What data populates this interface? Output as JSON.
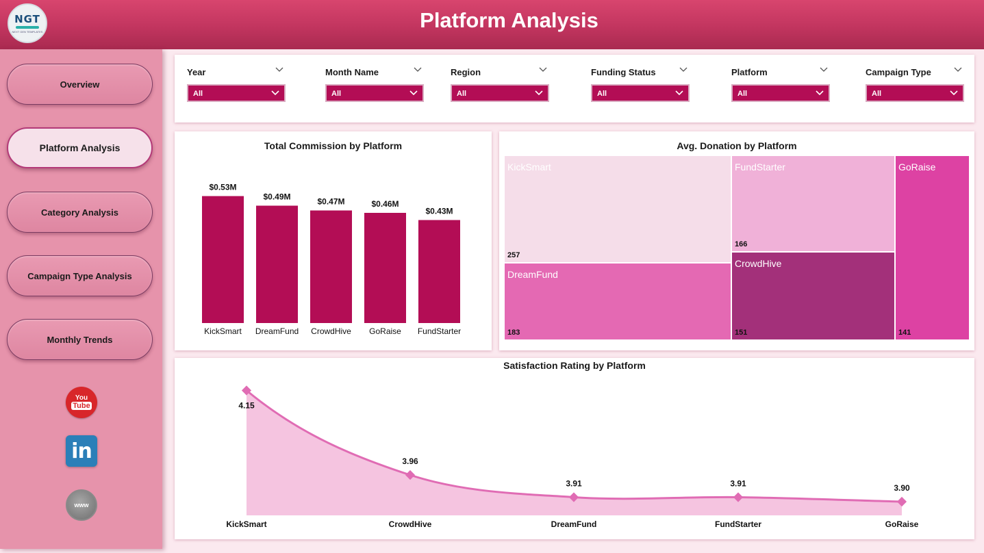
{
  "header": {
    "title": "Platform Analysis",
    "logo_text": "NGT",
    "logo_subtext": "NEXT GEN TEMPLATES"
  },
  "sidebar": {
    "items": [
      {
        "label": "Overview",
        "active": false
      },
      {
        "label": "Platform Analysis",
        "active": true
      },
      {
        "label": "Category Analysis",
        "active": false
      },
      {
        "label": "Campaign Type Analysis",
        "active": false
      },
      {
        "label": "Monthly Trends",
        "active": false
      }
    ],
    "social": {
      "youtube_top": "You",
      "youtube_bottom": "Tube",
      "linkedin": "in",
      "web": "www"
    }
  },
  "filters": [
    {
      "label": "Year",
      "value": "All"
    },
    {
      "label": "Month Name",
      "value": "All"
    },
    {
      "label": "Region",
      "value": "All"
    },
    {
      "label": "Funding Status",
      "value": "All"
    },
    {
      "label": "Platform",
      "value": "All"
    },
    {
      "label": "Campaign Type",
      "value": "All"
    }
  ],
  "colors": {
    "accent": "#b30d55",
    "header": "#c2355f",
    "sidebar": "#e693ab",
    "line": "#e06cb4",
    "area": "#f5c4e0"
  },
  "chart_data": [
    {
      "type": "bar",
      "title": "Total Commission by Platform",
      "categories": [
        "KickSmart",
        "DreamFund",
        "CrowdHive",
        "GoRaise",
        "FundStarter"
      ],
      "values": [
        0.53,
        0.49,
        0.47,
        0.46,
        0.43
      ],
      "value_labels": [
        "$0.53M",
        "$0.49M",
        "$0.47M",
        "$0.46M",
        "$0.43M"
      ],
      "ylim": [
        0,
        0.6
      ],
      "color": "#b30d55"
    },
    {
      "type": "treemap",
      "title": "Avg. Donation by Platform",
      "items": [
        {
          "name": "KickSmart",
          "value": 257,
          "color": "#f5dde9"
        },
        {
          "name": "DreamFund",
          "value": 183,
          "color": "#e469b3"
        },
        {
          "name": "FundStarter",
          "value": 166,
          "color": "#f0b1d8"
        },
        {
          "name": "CrowdHive",
          "value": 151,
          "color": "#a3307a"
        },
        {
          "name": "GoRaise",
          "value": 141,
          "color": "#dd42a3"
        }
      ]
    },
    {
      "type": "area",
      "title": "Satisfaction Rating by Platform",
      "categories": [
        "KickSmart",
        "CrowdHive",
        "DreamFund",
        "FundStarter",
        "GoRaise"
      ],
      "values": [
        4.15,
        3.96,
        3.91,
        3.91,
        3.9
      ],
      "value_labels": [
        "4.15",
        "3.96",
        "3.91",
        "3.91",
        "3.90"
      ],
      "ylim": [
        3.88,
        4.16
      ]
    }
  ]
}
